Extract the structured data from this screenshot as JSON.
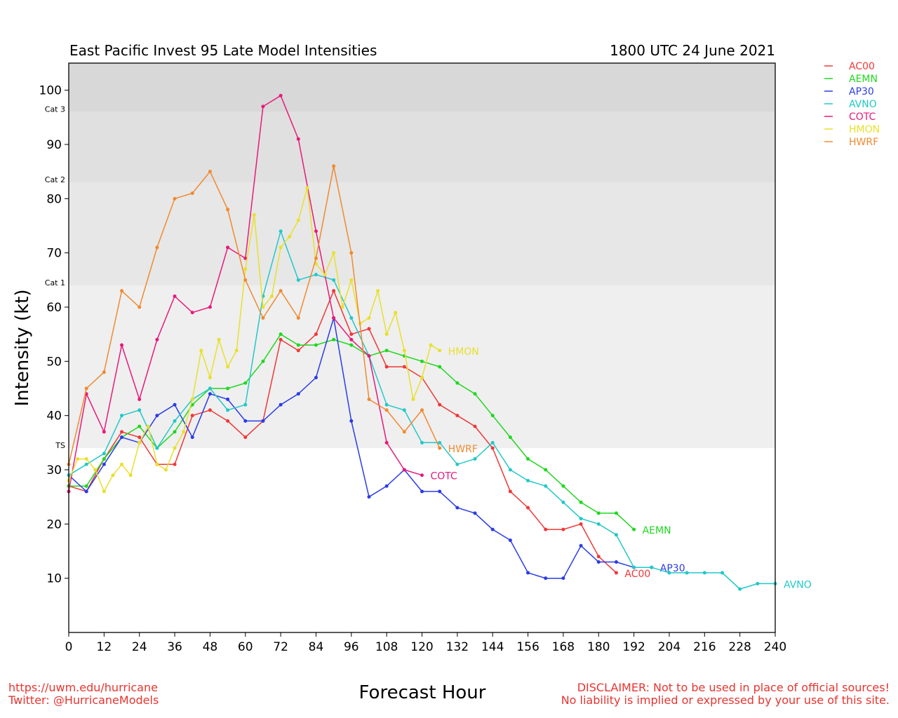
{
  "title": "East Pacific Invest 95 Late Model Intensities",
  "timestamp": "1800 UTC 24 June 2021",
  "footer": {
    "url": "https://uwm.edu/hurricane",
    "twitter": "Twitter: @HurricaneModels",
    "disclaimer_line1": "DISCLAIMER: Not to be used in place of official sources!",
    "disclaimer_line2": "No liability is implied or expressed by your use of this site."
  },
  "chart_data": {
    "type": "line",
    "title": "East Pacific Invest 95 Late Model Intensities",
    "subtitle": "1800 UTC 24 June 2021",
    "xlabel": "Forecast Hour",
    "ylabel": "Intensity (kt)",
    "xlim": [
      0,
      240
    ],
    "ylim": [
      0,
      105
    ],
    "xticks": [
      0,
      12,
      24,
      36,
      48,
      60,
      72,
      84,
      96,
      108,
      120,
      132,
      144,
      156,
      168,
      180,
      192,
      204,
      216,
      228,
      240
    ],
    "yticks": [
      10,
      20,
      30,
      40,
      50,
      60,
      70,
      80,
      90,
      100
    ],
    "category_bands": [
      {
        "label": "TS",
        "from": 34,
        "to": 64,
        "color": "#efefef"
      },
      {
        "label": "Cat 1",
        "from": 64,
        "to": 83,
        "color": "#e7e7e7"
      },
      {
        "label": "Cat 2",
        "from": 83,
        "to": 96,
        "color": "#e0e0e0"
      },
      {
        "label": "Cat 3",
        "from": 96,
        "to": 105,
        "color": "#d8d8d8"
      }
    ],
    "legend_position": "outside-right",
    "series": [
      {
        "name": "AC00",
        "color": "#f03838",
        "x": [
          0,
          6,
          12,
          18,
          24,
          30,
          36,
          42,
          48,
          54,
          60,
          66,
          72,
          78,
          84,
          90,
          96,
          102,
          108,
          114,
          120,
          126,
          132,
          138,
          144,
          150,
          156,
          162,
          168,
          174,
          180,
          186
        ],
        "y": [
          27,
          26,
          32,
          37,
          36,
          31,
          31,
          40,
          41,
          39,
          36,
          39,
          54,
          52,
          55,
          63,
          55,
          56,
          49,
          49,
          47,
          42,
          40,
          38,
          34,
          26,
          23,
          19,
          19,
          20,
          14,
          11
        ]
      },
      {
        "name": "AEMN",
        "color": "#1ed81e",
        "x": [
          0,
          6,
          12,
          18,
          24,
          30,
          36,
          42,
          48,
          54,
          60,
          66,
          72,
          78,
          84,
          90,
          96,
          102,
          108,
          114,
          120,
          126,
          132,
          138,
          144,
          150,
          156,
          162,
          168,
          174,
          180,
          186,
          192
        ],
        "y": [
          27,
          27,
          32,
          36,
          38,
          34,
          37,
          42,
          45,
          45,
          46,
          50,
          55,
          53,
          53,
          54,
          53,
          51,
          52,
          51,
          50,
          49,
          46,
          44,
          40,
          36,
          32,
          30,
          27,
          24,
          22,
          22,
          19
        ]
      },
      {
        "name": "AP30",
        "color": "#2a3ce8",
        "x": [
          0,
          6,
          12,
          18,
          24,
          30,
          36,
          42,
          48,
          54,
          60,
          66,
          72,
          78,
          84,
          90,
          96,
          102,
          108,
          114,
          120,
          126,
          132,
          138,
          144,
          150,
          156,
          162,
          168,
          174,
          180,
          186,
          192,
          198
        ],
        "y": [
          29,
          26,
          31,
          36,
          35,
          40,
          42,
          36,
          44,
          43,
          39,
          39,
          42,
          44,
          47,
          58,
          39,
          25,
          27,
          30,
          26,
          26,
          23,
          22,
          19,
          17,
          11,
          10,
          10,
          16,
          13,
          13,
          12,
          12
        ]
      },
      {
        "name": "AVNO",
        "color": "#22c8c8",
        "x": [
          0,
          6,
          12,
          18,
          24,
          30,
          36,
          42,
          48,
          54,
          60,
          66,
          72,
          78,
          84,
          90,
          96,
          102,
          108,
          114,
          120,
          126,
          132,
          138,
          144,
          150,
          156,
          162,
          168,
          174,
          180,
          186,
          192,
          198,
          204,
          210,
          216,
          222,
          228,
          234,
          240
        ],
        "y": [
          29,
          31,
          33,
          40,
          41,
          34,
          39,
          43,
          45,
          41,
          42,
          62,
          74,
          65,
          66,
          65,
          58,
          51,
          42,
          41,
          35,
          35,
          31,
          32,
          35,
          30,
          28,
          27,
          24,
          21,
          20,
          18,
          12,
          12,
          11,
          11,
          11,
          11,
          8,
          9,
          9
        ]
      },
      {
        "name": "COTC",
        "color": "#e8197a",
        "x": [
          0,
          6,
          12,
          18,
          24,
          30,
          36,
          42,
          48,
          54,
          60,
          66,
          72,
          78,
          84,
          90,
          96,
          102,
          108,
          114,
          120
        ],
        "y": [
          26,
          44,
          37,
          53,
          43,
          54,
          62,
          59,
          60,
          71,
          69,
          97,
          99,
          91,
          74,
          58,
          54,
          51,
          35,
          30,
          29
        ]
      },
      {
        "name": "HMON",
        "color": "#e8e02c",
        "x": [
          0,
          3,
          6,
          9,
          12,
          15,
          18,
          21,
          24,
          27,
          30,
          33,
          36,
          39,
          42,
          45,
          48,
          51,
          54,
          57,
          60,
          63,
          66,
          69,
          72,
          75,
          78,
          81,
          84,
          87,
          90,
          93,
          96,
          99,
          102,
          105,
          108,
          111,
          114,
          117,
          120,
          123,
          126
        ],
        "y": [
          28,
          32,
          32,
          30,
          26,
          29,
          31,
          29,
          35,
          38,
          31,
          30,
          34,
          37,
          43,
          52,
          47,
          54,
          49,
          52,
          67,
          77,
          60,
          62,
          71,
          73,
          76,
          82,
          68,
          66,
          70,
          60,
          65,
          57,
          58,
          63,
          55,
          59,
          52,
          43,
          47,
          53,
          52
        ]
      },
      {
        "name": "HWRF",
        "color": "#f08a30",
        "x": [
          0,
          6,
          12,
          18,
          24,
          30,
          36,
          42,
          48,
          54,
          60,
          66,
          72,
          78,
          84,
          90,
          96,
          102,
          108,
          114,
          120,
          126
        ],
        "y": [
          31,
          45,
          48,
          63,
          60,
          71,
          80,
          81,
          85,
          78,
          65,
          58,
          63,
          58,
          69,
          86,
          70,
          43,
          41,
          37,
          41,
          34
        ]
      }
    ]
  }
}
